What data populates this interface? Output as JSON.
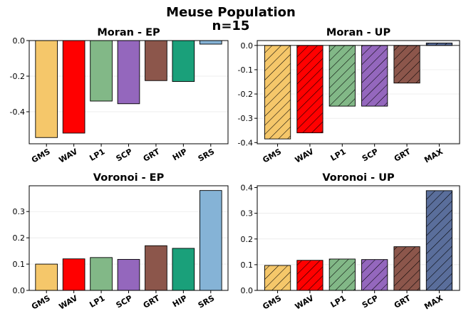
{
  "figure": {
    "title_line1": "Meuse Population",
    "title_line2": "n=15"
  },
  "colors": {
    "GMS": "#F5C76A",
    "WAV": "#FF0000",
    "LP1": "#82B887",
    "SCP": "#9467BD",
    "GRT": "#8C564B",
    "HIP": "#1AA07A",
    "SRS": "#85B3D6",
    "MAX": "#5A6E9B"
  },
  "chart_data": [
    {
      "id": "moran-ep",
      "type": "bar",
      "title": "Moran - EP",
      "hatched": false,
      "categories": [
        "GMS",
        "WAV",
        "LP1",
        "SCP",
        "GRT",
        "HIP",
        "SRS"
      ],
      "values": [
        -0.545,
        -0.52,
        -0.34,
        -0.355,
        -0.225,
        -0.23,
        -0.02
      ],
      "ylim": [
        -0.58,
        0.0
      ],
      "yticks": [
        0.0,
        -0.2,
        -0.4
      ],
      "ytick_labels": [
        "0.0",
        "-0.2",
        "-0.4"
      ]
    },
    {
      "id": "moran-up",
      "type": "bar",
      "title": "Moran - UP",
      "hatched": true,
      "categories": [
        "GMS",
        "WAV",
        "LP1",
        "SCP",
        "GRT",
        "MAX"
      ],
      "values": [
        -0.385,
        -0.36,
        -0.25,
        -0.25,
        -0.155,
        0.01
      ],
      "ylim": [
        -0.405,
        0.02
      ],
      "yticks": [
        0.0,
        -0.1,
        -0.2,
        -0.3,
        -0.4
      ],
      "ytick_labels": [
        "0.0",
        "-0.1",
        "-0.2",
        "-0.3",
        "-0.4"
      ]
    },
    {
      "id": "voronoi-ep",
      "type": "bar",
      "title": "Voronoi - EP",
      "hatched": false,
      "categories": [
        "GMS",
        "WAV",
        "LP1",
        "SCP",
        "GRT",
        "HIP",
        "SRS"
      ],
      "values": [
        0.1,
        0.12,
        0.125,
        0.118,
        0.17,
        0.16,
        0.38
      ],
      "ylim": [
        0.0,
        0.398
      ],
      "yticks": [
        0.0,
        0.1,
        0.2,
        0.3
      ],
      "ytick_labels": [
        "0.0",
        "0.1",
        "0.2",
        "0.3"
      ]
    },
    {
      "id": "voronoi-up",
      "type": "bar",
      "title": "Voronoi - UP",
      "hatched": true,
      "categories": [
        "GMS",
        "WAV",
        "LP1",
        "SCP",
        "GRT",
        "MAX"
      ],
      "values": [
        0.097,
        0.117,
        0.122,
        0.12,
        0.17,
        0.388
      ],
      "ylim": [
        0.0,
        0.407
      ],
      "yticks": [
        0.0,
        0.1,
        0.2,
        0.3,
        0.4
      ],
      "ytick_labels": [
        "0.0",
        "0.1",
        "0.2",
        "0.3",
        "0.4"
      ]
    }
  ]
}
